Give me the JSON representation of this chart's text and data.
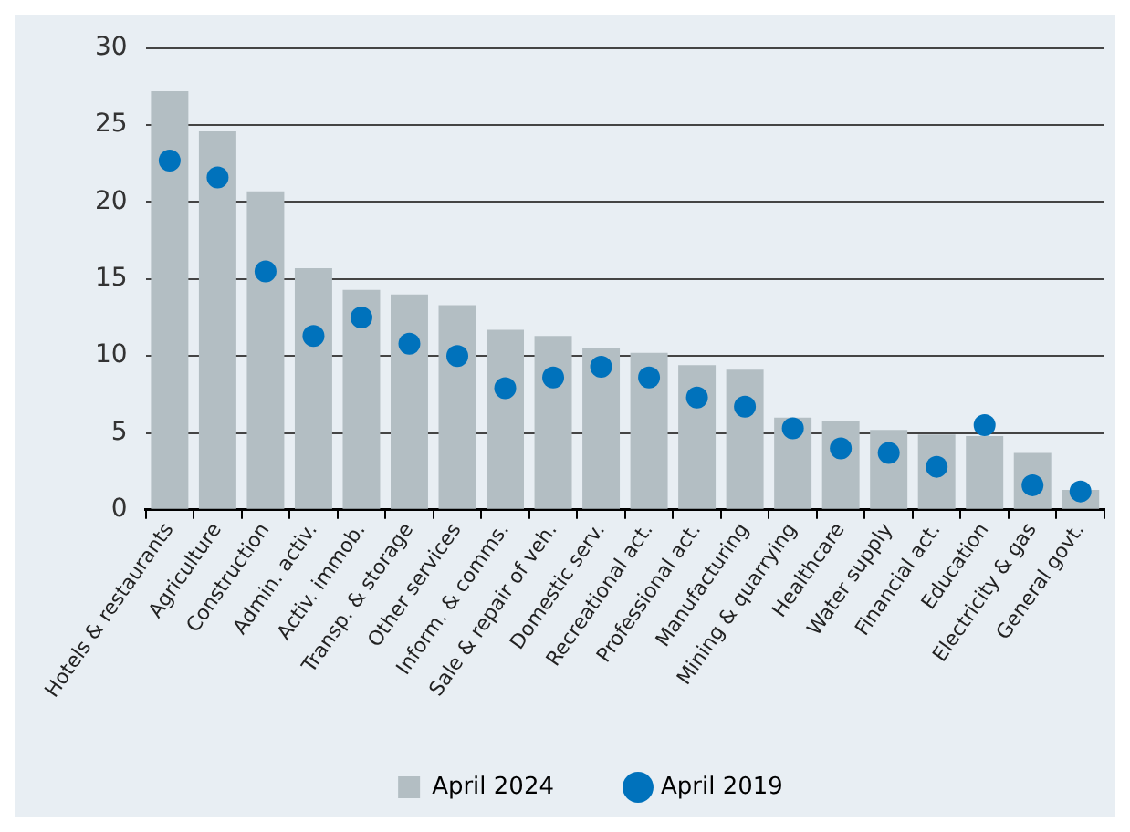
{
  "chart_data": {
    "type": "bar",
    "categories": [
      "Hotels & restaurants",
      "Agriculture",
      "Construction",
      "Admin. activ.",
      "Activ. immob.",
      "Transp. & storage",
      "Other services",
      "Inform. & comms.",
      "Sale & repair of veh.",
      "Domestic serv.",
      "Recreational act.",
      "Professional act.",
      "Manufacturing",
      "Mining & quarrying",
      "Healthcare",
      "Water supply",
      "Financial act.",
      "Education",
      "Electricity & gas",
      "General govt."
    ],
    "series": [
      {
        "name": "April 2024",
        "color": "#b3bec3",
        "values": [
          27.2,
          24.6,
          20.7,
          15.7,
          14.3,
          14.0,
          13.3,
          11.7,
          11.3,
          10.5,
          10.2,
          9.4,
          9.1,
          6.0,
          5.8,
          5.2,
          4.9,
          4.8,
          3.7,
          1.3
        ]
      },
      {
        "name": "April 2019",
        "type": "scatter",
        "color": "#0072bc",
        "values": [
          22.7,
          21.6,
          15.5,
          11.3,
          12.5,
          10.8,
          10.0,
          7.9,
          8.6,
          9.3,
          8.6,
          7.3,
          6.7,
          5.3,
          4.0,
          3.7,
          2.8,
          5.5,
          1.6,
          1.2
        ]
      }
    ],
    "ylim": [
      0,
      30
    ],
    "yticks": [
      0,
      5,
      10,
      15,
      20,
      25,
      30
    ],
    "grid": "y",
    "legend": "bottom",
    "marker": "circle"
  }
}
